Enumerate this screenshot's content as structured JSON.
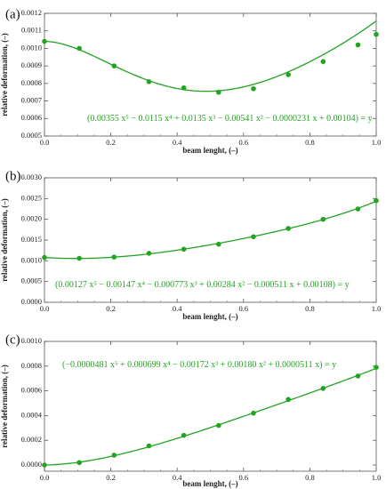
{
  "chart_data": [
    {
      "type": "scatter",
      "panel_label": "(a)",
      "xlabel": "beam lenght, (–)",
      "ylabel": "relative deformation, (–)",
      "xlim": [
        0,
        1
      ],
      "ylim": [
        0.0005,
        0.0012
      ],
      "x_ticks": [
        "0.0",
        "0.2",
        "0.4",
        "0.6",
        "0.8",
        "1.0"
      ],
      "y_ticks": [
        "0.0005",
        "0.0006",
        "0.0007",
        "0.0008",
        "0.0009",
        "0.0010",
        "0.0011",
        "0.0012"
      ],
      "points": {
        "x": [
          0.0,
          0.105,
          0.21,
          0.315,
          0.42,
          0.525,
          0.63,
          0.735,
          0.84,
          0.945,
          1.0
        ],
        "y": [
          0.00104,
          0.001,
          0.0009,
          0.00081,
          0.000775,
          0.00075,
          0.00077,
          0.00085,
          0.000925,
          0.00102,
          0.00108
        ]
      },
      "fit_coeffs": [
        0.00104,
        -2.31e-05,
        -0.00541,
        0.0135,
        -0.0115,
        0.00355
      ],
      "fit_label": "(0.00355 x⁵ − 0.0115 x⁴ + 0.0135 x³ − 0.00541 x² − 0.0000231 x + 0.00104) = y",
      "color": "#22a322",
      "grid": false
    },
    {
      "type": "scatter",
      "panel_label": "(b)",
      "xlabel": "beam lenght, (–)",
      "ylabel": "relative deformation, (–)",
      "xlim": [
        0,
        1
      ],
      "ylim": [
        0,
        0.003
      ],
      "x_ticks": [
        "0.0",
        "0.2",
        "0.4",
        "0.6",
        "0.8",
        "1.0"
      ],
      "y_ticks": [
        "0.0000",
        "0.0005",
        "0.0010",
        "0.0015",
        "0.0020",
        "0.0025",
        "0.0030"
      ],
      "points": {
        "x": [
          0.0,
          0.105,
          0.21,
          0.315,
          0.42,
          0.525,
          0.63,
          0.735,
          0.84,
          0.945,
          1.0
        ],
        "y": [
          0.00108,
          0.00106,
          0.00109,
          0.00118,
          0.00128,
          0.0014,
          0.00158,
          0.00178,
          0.002,
          0.00225,
          0.00245
        ]
      },
      "fit_coeffs": [
        0.00108,
        -0.000511,
        0.00284,
        -0.000773,
        -0.00147,
        0.00127
      ],
      "fit_label": "(0.00127 x⁵ − 0.00147 x⁴ − 0.000773 x³ + 0.00284 x² − 0.000511 x + 0.00108) = y",
      "color": "#22a322",
      "grid": false
    },
    {
      "type": "scatter",
      "panel_label": "(c)",
      "xlabel": "beam lenght, (–)",
      "ylabel": "relative deformation, (–)",
      "xlim": [
        0,
        1
      ],
      "ylim": [
        -5e-05,
        0.001
      ],
      "x_ticks": [
        "0.0",
        "0.2",
        "0.4",
        "0.6",
        "0.8",
        "1.0"
      ],
      "y_ticks": [
        "0.0000",
        "0.0002",
        "0.0004",
        "0.0006",
        "0.0008",
        "0.0010"
      ],
      "points": {
        "x": [
          0.0,
          0.105,
          0.21,
          0.315,
          0.42,
          0.525,
          0.63,
          0.735,
          0.84,
          0.945,
          1.0
        ],
        "y": [
          0.0,
          2e-05,
          8e-05,
          0.000155,
          0.00024,
          0.00032,
          0.00042,
          0.00053,
          0.00062,
          0.00072,
          0.00079
        ]
      },
      "fit_coeffs": [
        0.0,
        5.11e-05,
        0.0018,
        -0.00172,
        0.000699,
        -4.81e-05
      ],
      "fit_label": "(−0.0000481 x⁵ + 0.000699 x⁴ − 0.00172 x³ + 0.00180 x² + 0.0000511 x) = y",
      "color": "#22a322",
      "grid": false
    }
  ]
}
